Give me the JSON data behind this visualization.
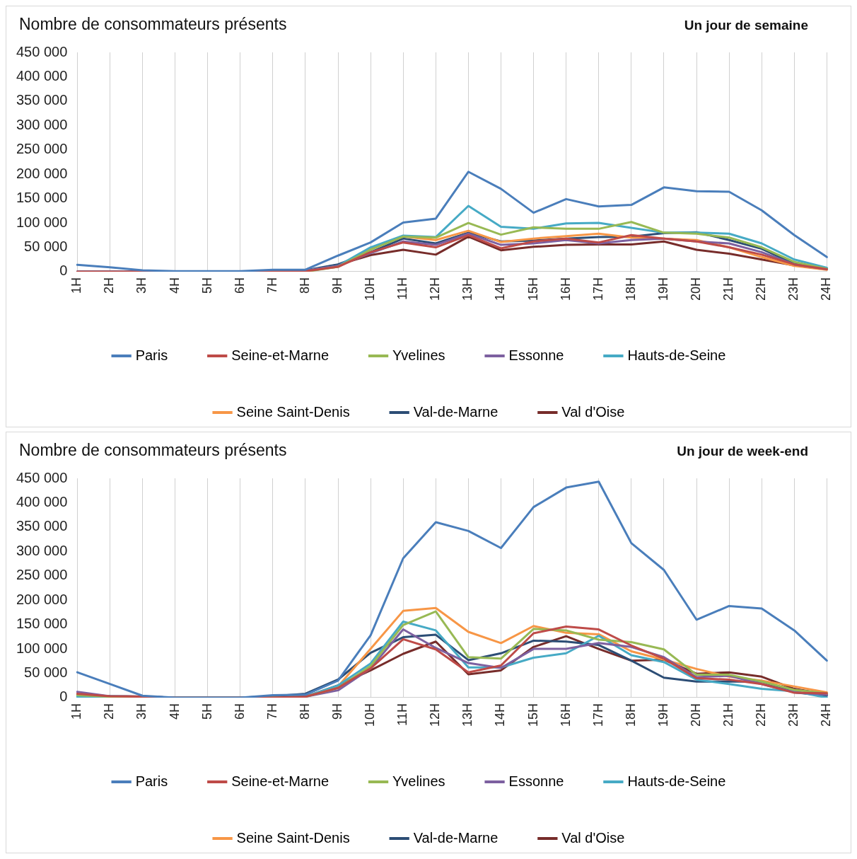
{
  "chart_data": [
    {
      "type": "line",
      "title": "Nombre de consommateurs présents",
      "subtitle": "Un jour de semaine",
      "categories": [
        "1H",
        "2H",
        "3H",
        "4H",
        "5H",
        "6H",
        "7H",
        "8H",
        "9H",
        "10H",
        "11H",
        "12H",
        "13H",
        "14H",
        "15H",
        "16H",
        "17H",
        "18H",
        "19H",
        "20H",
        "21H",
        "22H",
        "23H",
        "24H"
      ],
      "ylim": [
        0,
        450000
      ],
      "yticks": [
        {
          "value": 0,
          "label": "0"
        },
        {
          "value": 50000,
          "label": "50 000"
        },
        {
          "value": 100000,
          "label": "100 000"
        },
        {
          "value": 150000,
          "label": "150 000"
        },
        {
          "value": 200000,
          "label": "200 000"
        },
        {
          "value": 250000,
          "label": "250 000"
        },
        {
          "value": 300000,
          "label": "300 000"
        },
        {
          "value": 350000,
          "label": "350 000"
        },
        {
          "value": 400000,
          "label": "400 000"
        },
        {
          "value": 450000,
          "label": "450 000"
        }
      ],
      "grid": "x",
      "legend": "bottom",
      "marker": "none",
      "line_style": "solid",
      "series": [
        {
          "name": "Paris",
          "color": "#4a7ebb",
          "values": [
            14000,
            9000,
            3000,
            1000,
            1000,
            1000,
            4000,
            4000,
            33000,
            60000,
            101000,
            109000,
            205000,
            170000,
            121000,
            149000,
            134000,
            137000,
            173000,
            165000,
            164000,
            126000,
            75000,
            30000
          ]
        },
        {
          "name": "Seine-et-Marne",
          "color": "#be4b48",
          "values": [
            0,
            0,
            0,
            0,
            0,
            0,
            0,
            1000,
            10000,
            40000,
            60000,
            50000,
            75000,
            48000,
            62000,
            68000,
            60000,
            75000,
            68000,
            62000,
            50000,
            35000,
            15000,
            5000
          ]
        },
        {
          "name": "Yvelines",
          "color": "#98b954",
          "values": [
            null,
            null,
            null,
            null,
            null,
            null,
            0,
            0,
            10000,
            45000,
            72000,
            70000,
            100000,
            76000,
            91000,
            88000,
            88000,
            102000,
            80000,
            78000,
            70000,
            50000,
            20000,
            6000
          ]
        },
        {
          "name": "Essonne",
          "color": "#7d60a0",
          "values": [
            0,
            0,
            0,
            0,
            0,
            0,
            0,
            2000,
            12000,
            38000,
            62000,
            55000,
            78000,
            55000,
            58000,
            65000,
            58000,
            65000,
            68000,
            62000,
            58000,
            40000,
            15000,
            5000
          ]
        },
        {
          "name": "Hauts-de-Seine",
          "color": "#46aac5",
          "values": [
            0,
            0,
            0,
            0,
            0,
            0,
            0,
            2000,
            12000,
            50000,
            74000,
            71000,
            135000,
            92000,
            88000,
            99000,
            100000,
            90000,
            80000,
            80000,
            78000,
            58000,
            25000,
            8000
          ]
        },
        {
          "name": "Seine Saint-Denis",
          "color": "#f79646",
          "values": [
            null,
            null,
            null,
            null,
            null,
            null,
            null,
            2000,
            10000,
            48000,
            72000,
            65000,
            84000,
            61000,
            68000,
            73000,
            78000,
            70000,
            68000,
            65000,
            50000,
            30000,
            12000,
            4000
          ]
        },
        {
          "name": "Val-de-Marne",
          "color": "#2c4d75",
          "values": [
            0,
            0,
            0,
            0,
            0,
            0,
            0,
            3000,
            15000,
            40000,
            68000,
            58000,
            80000,
            62000,
            64000,
            68000,
            71000,
            72000,
            79000,
            81000,
            65000,
            47000,
            16000,
            7000
          ]
        },
        {
          "name": "Val d'Oise",
          "color": "#772c2a",
          "values": [
            0,
            0,
            0,
            0,
            0,
            0,
            0,
            2000,
            14000,
            34000,
            45000,
            35000,
            72000,
            44000,
            51000,
            55000,
            56000,
            56000,
            62000,
            45000,
            37000,
            25000,
            13000,
            6000
          ]
        }
      ]
    },
    {
      "type": "line",
      "title": "Nombre de consommateurs présents",
      "subtitle": "Un jour de week-end",
      "categories": [
        "1H",
        "2H",
        "3H",
        "4H",
        "5H",
        "6H",
        "7H",
        "8H",
        "9H",
        "10H",
        "11H",
        "12H",
        "13H",
        "14H",
        "15H",
        "16H",
        "17H",
        "18H",
        "19H",
        "20H",
        "21H",
        "22H",
        "23H",
        "24H"
      ],
      "ylim": [
        0,
        450000
      ],
      "yticks": [
        {
          "value": 0,
          "label": "0"
        },
        {
          "value": 50000,
          "label": "50 000"
        },
        {
          "value": 100000,
          "label": "100 000"
        },
        {
          "value": 150000,
          "label": "150 000"
        },
        {
          "value": 200000,
          "label": "200 000"
        },
        {
          "value": 250000,
          "label": "250 000"
        },
        {
          "value": 300000,
          "label": "300 000"
        },
        {
          "value": 350000,
          "label": "350 000"
        },
        {
          "value": 400000,
          "label": "400 000"
        },
        {
          "value": 450000,
          "label": "450 000"
        }
      ],
      "grid": "x",
      "legend": "bottom",
      "marker": "none",
      "line_style": "solid",
      "series": [
        {
          "name": "Paris",
          "color": "#4a7ebb",
          "values": [
            52000,
            28000,
            4000,
            0,
            0,
            0,
            5000,
            6000,
            35000,
            128000,
            286000,
            360000,
            342000,
            307000,
            391000,
            431000,
            443000,
            317000,
            262000,
            160000,
            188000,
            183000,
            138000,
            76000
          ]
        },
        {
          "name": "Seine-et-Marne",
          "color": "#be4b48",
          "values": [
            8000,
            3000,
            2000,
            0,
            0,
            0,
            0,
            2000,
            20000,
            60000,
            120000,
            99000,
            52000,
            66000,
            132000,
            146000,
            140000,
            107000,
            80000,
            40000,
            37000,
            28000,
            10000,
            9000
          ]
        },
        {
          "name": "Yvelines",
          "color": "#98b954",
          "values": [
            5000,
            2000,
            1000,
            0,
            0,
            0,
            0,
            2000,
            20000,
            65000,
            149000,
            177000,
            83000,
            80000,
            141000,
            138000,
            119000,
            114000,
            99000,
            47000,
            47000,
            33000,
            16000,
            9000
          ]
        },
        {
          "name": "Essonne",
          "color": "#7d60a0",
          "values": [
            12000,
            3000,
            2000,
            0,
            0,
            0,
            0,
            2000,
            15000,
            60000,
            140000,
            102000,
            71000,
            61000,
            100000,
            100000,
            112000,
            104000,
            83000,
            42000,
            45000,
            28000,
            11000,
            6000
          ]
        },
        {
          "name": "Hauts-de-Seine",
          "color": "#46aac5",
          "values": [
            2000,
            0,
            0,
            0,
            0,
            0,
            0,
            2000,
            25000,
            70000,
            156000,
            138000,
            62000,
            62000,
            82000,
            91000,
            127000,
            87000,
            73000,
            37000,
            28000,
            18000,
            13000,
            0
          ]
        },
        {
          "name": "Seine Saint-Denis",
          "color": "#f79646",
          "values": [
            null,
            null,
            null,
            null,
            null,
            null,
            null,
            2000,
            23000,
            100000,
            178000,
            184000,
            135000,
            112000,
            147000,
            133000,
            130000,
            95000,
            78000,
            59000,
            43000,
            35000,
            23000,
            11000
          ]
        },
        {
          "name": "Val-de-Marne",
          "color": "#2c4d75",
          "values": [
            5000,
            3000,
            2000,
            0,
            0,
            0,
            3000,
            8000,
            37000,
            92000,
            124000,
            129000,
            77000,
            91000,
            117000,
            115000,
            108000,
            76000,
            41000,
            33000,
            33000,
            33000,
            11000,
            4000
          ]
        },
        {
          "name": "Val d'Oise",
          "color": "#772c2a",
          "values": [
            7000,
            3000,
            2000,
            0,
            0,
            0,
            0,
            2000,
            25000,
            56000,
            90000,
            115000,
            48000,
            56000,
            104000,
            126000,
            100000,
            76000,
            78000,
            49000,
            52000,
            43000,
            18000,
            7000
          ]
        }
      ]
    }
  ]
}
